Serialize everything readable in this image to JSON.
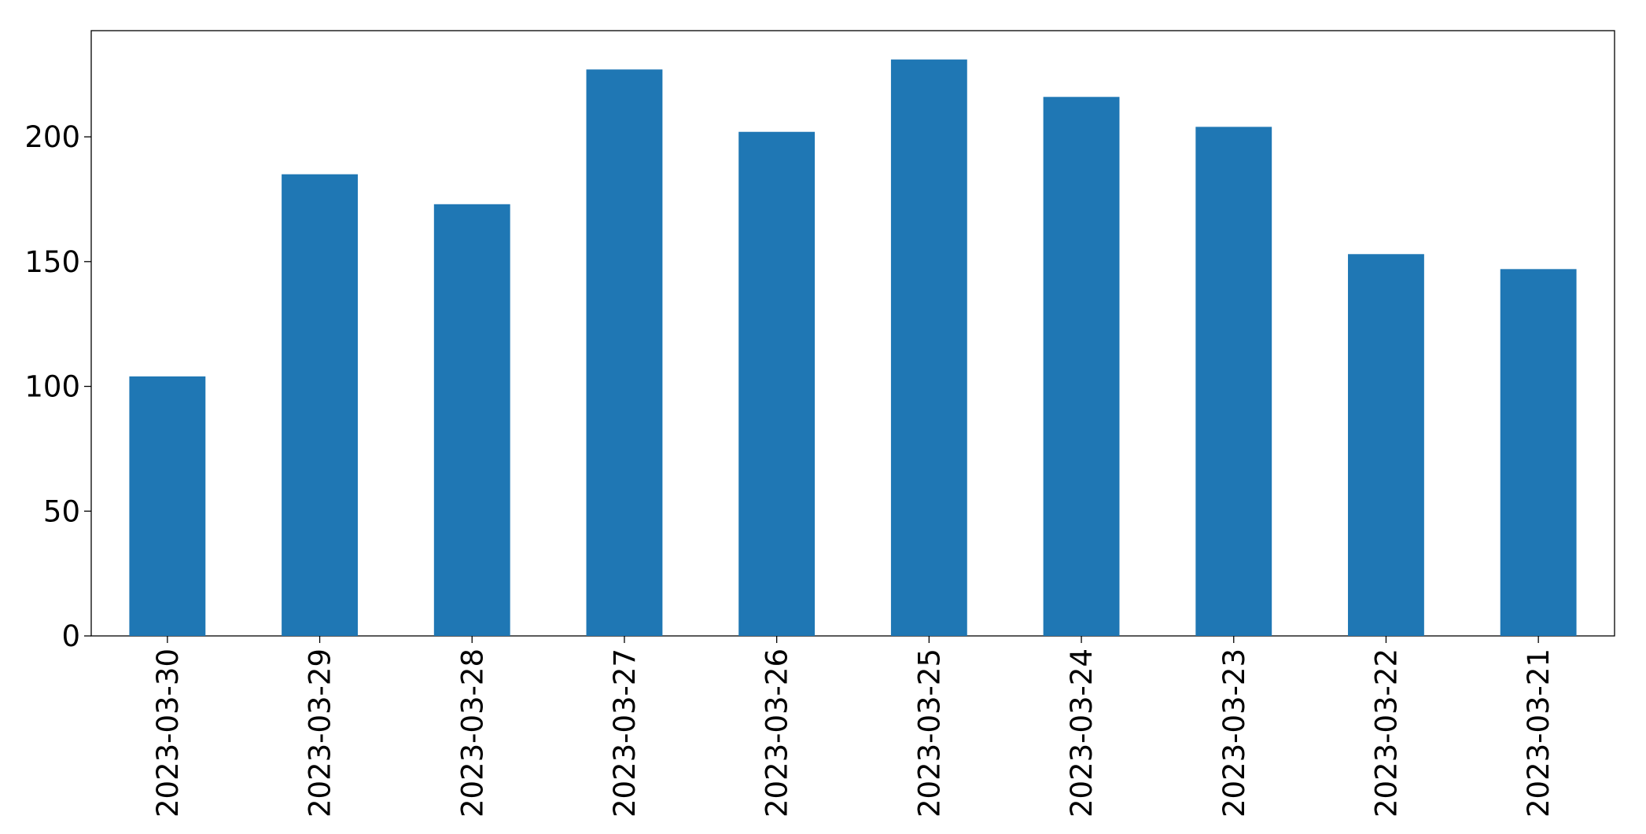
{
  "chart_data": {
    "type": "bar",
    "categories": [
      "2023-03-30",
      "2023-03-29",
      "2023-03-28",
      "2023-03-27",
      "2023-03-26",
      "2023-03-25",
      "2023-03-24",
      "2023-03-23",
      "2023-03-22",
      "2023-03-21"
    ],
    "values": [
      104,
      185,
      173,
      227,
      202,
      231,
      216,
      204,
      153,
      147
    ],
    "color": "#1f77b4",
    "ylim": [
      0,
      242.55
    ],
    "yticks": [
      0,
      50,
      100,
      150,
      200
    ],
    "grid": false
  }
}
